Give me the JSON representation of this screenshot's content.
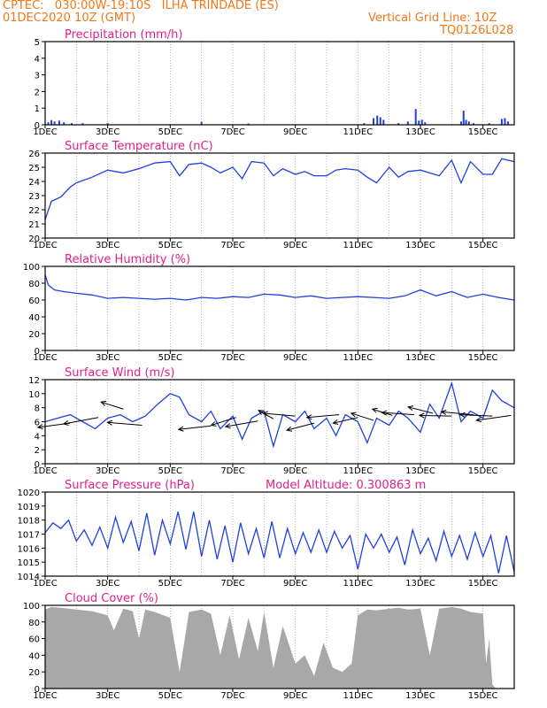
{
  "header": {
    "line1_left": "CPTEC:   030:00W-19:10S   ILHA TRINDADE (ES)",
    "line2_left": "01DEC2020 10Z (GMT)",
    "line1_right": "Vertical Grid Line: 10Z",
    "line2_right": "TQ0126L028"
  },
  "colors": {
    "header": "#f07818",
    "title": "#e0208a",
    "series": "#2040e0",
    "bar": "#2040e0",
    "cloud": "#a8a8a8",
    "grid": "#888888"
  },
  "xaxis": {
    "ticks": [
      "1DEC",
      "3DEC",
      "5DEC",
      "7DEC",
      "9DEC",
      "11DEC",
      "13DEC",
      "15DEC"
    ],
    "days": 15
  },
  "chart_data": [
    {
      "type": "bar",
      "title": "Precipitation (mm/h)",
      "ylim": [
        0,
        5
      ],
      "yticks": [
        "0",
        "1",
        "2",
        "3",
        "4",
        "5"
      ],
      "bars": [
        [
          0.1,
          0.15
        ],
        [
          0.2,
          0.28
        ],
        [
          0.3,
          0.2
        ],
        [
          0.45,
          0.25
        ],
        [
          0.6,
          0.15
        ],
        [
          0.85,
          0.1
        ],
        [
          1.2,
          0.1
        ],
        [
          2.0,
          0.1
        ],
        [
          5.0,
          0.18
        ],
        [
          6.5,
          0.08
        ],
        [
          10.2,
          0.1
        ],
        [
          10.5,
          0.4
        ],
        [
          10.62,
          0.55
        ],
        [
          10.72,
          0.45
        ],
        [
          10.82,
          0.3
        ],
        [
          11.3,
          0.1
        ],
        [
          11.6,
          0.2
        ],
        [
          11.85,
          0.95
        ],
        [
          11.95,
          0.25
        ],
        [
          12.05,
          0.3
        ],
        [
          12.15,
          0.15
        ],
        [
          13.3,
          0.2
        ],
        [
          13.38,
          0.85
        ],
        [
          13.46,
          0.3
        ],
        [
          13.55,
          0.2
        ],
        [
          13.7,
          0.1
        ],
        [
          14.2,
          0.1
        ],
        [
          14.6,
          0.35
        ],
        [
          14.7,
          0.4
        ],
        [
          14.8,
          0.2
        ]
      ]
    },
    {
      "type": "line",
      "title": "Surface Temperature (nC)",
      "ylim": [
        20,
        26
      ],
      "yticks": [
        "20",
        "21",
        "22",
        "23",
        "24",
        "25",
        "26"
      ],
      "x": [
        0,
        0.2,
        0.5,
        0.8,
        1.0,
        1.5,
        2.0,
        2.5,
        3.0,
        3.5,
        4.0,
        4.3,
        4.6,
        5.0,
        5.3,
        5.6,
        6.0,
        6.3,
        6.6,
        7.0,
        7.3,
        7.6,
        8.0,
        8.3,
        8.6,
        9.0,
        9.3,
        9.6,
        10.0,
        10.3,
        10.6,
        11.0,
        11.3,
        11.6,
        12.0,
        12.3,
        12.6,
        13.0,
        13.3,
        13.6,
        14.0,
        14.3,
        14.6,
        15.0
      ],
      "y": [
        21.3,
        22.6,
        22.9,
        23.6,
        23.9,
        24.3,
        24.8,
        24.6,
        24.9,
        25.3,
        25.4,
        24.4,
        25.2,
        25.3,
        25.0,
        24.6,
        25.0,
        24.2,
        25.4,
        25.3,
        24.4,
        24.9,
        24.5,
        24.7,
        24.4,
        24.4,
        24.8,
        24.9,
        24.8,
        24.3,
        23.9,
        25.0,
        24.3,
        24.7,
        24.8,
        24.6,
        24.4,
        25.5,
        23.9,
        25.4,
        24.5,
        24.5,
        25.6,
        25.4
      ]
    },
    {
      "type": "line",
      "title": "Relative Humidity (%)",
      "ylim": [
        0,
        100
      ],
      "yticks": [
        "0",
        "20",
        "40",
        "60",
        "80",
        "100"
      ],
      "x": [
        0,
        0.1,
        0.3,
        0.6,
        1.0,
        1.5,
        2.0,
        2.5,
        3.0,
        3.5,
        4.0,
        4.5,
        5.0,
        5.5,
        6.0,
        6.5,
        7.0,
        7.5,
        8.0,
        8.5,
        9.0,
        9.5,
        10.0,
        10.5,
        11.0,
        11.5,
        12.0,
        12.5,
        13.0,
        13.5,
        14.0,
        14.5,
        15.0
      ],
      "y": [
        90,
        78,
        72,
        70,
        68,
        66,
        62,
        63,
        62,
        61,
        62,
        60,
        63,
        62,
        64,
        63,
        67,
        66,
        63,
        65,
        62,
        63,
        64,
        63,
        62,
        65,
        72,
        65,
        70,
        63,
        67,
        63,
        60
      ]
    },
    {
      "type": "line",
      "title": "Surface Wind (m/s)",
      "ylim": [
        0,
        12
      ],
      "yticks": [
        "0",
        "2",
        "4",
        "6",
        "8",
        "10",
        "12"
      ],
      "x": [
        0,
        0.4,
        0.8,
        1.2,
        1.6,
        2.0,
        2.4,
        2.8,
        3.2,
        3.6,
        4.0,
        4.3,
        4.6,
        5.0,
        5.3,
        5.6,
        6.0,
        6.3,
        6.6,
        7.0,
        7.3,
        7.6,
        8.0,
        8.3,
        8.6,
        9.0,
        9.3,
        9.6,
        10.0,
        10.3,
        10.6,
        11.0,
        11.3,
        11.6,
        12.0,
        12.3,
        12.6,
        13.0,
        13.3,
        13.6,
        14.0,
        14.3,
        14.6,
        15.0
      ],
      "y": [
        6,
        6.5,
        7,
        6,
        5,
        6.5,
        7,
        6,
        6.8,
        8.5,
        10,
        9.5,
        7,
        6,
        7.5,
        5,
        6.8,
        3.5,
        6.5,
        7.5,
        2.5,
        7,
        6,
        7.5,
        5,
        6.5,
        4,
        7,
        6,
        3,
        6.5,
        5.5,
        7.5,
        6.5,
        4.5,
        8.5,
        6.5,
        11.5,
        6,
        7.5,
        6.5,
        10.5,
        9,
        8
      ],
      "arrows": [
        [
          0.8,
          5.8,
          -1.3,
          -0.6
        ],
        [
          1.7,
          6.6,
          -1.4,
          -0.9
        ],
        [
          2.5,
          7.8,
          -0.9,
          1.0
        ],
        [
          3.1,
          5.5,
          -1.4,
          0.4
        ],
        [
          5.3,
          5.4,
          -1.3,
          -0.5
        ],
        [
          6.1,
          6.6,
          -1.0,
          -1.1
        ],
        [
          6.8,
          6.1,
          -1.3,
          -0.8
        ],
        [
          7.3,
          6.4,
          -0.6,
          1.2
        ],
        [
          8.0,
          6.8,
          -1.3,
          0.4
        ],
        [
          8.6,
          5.8,
          -1.1,
          -1.0
        ],
        [
          9.4,
          7.0,
          -1.3,
          -0.4
        ],
        [
          10.0,
          6.6,
          -1.0,
          -0.8
        ],
        [
          10.5,
          6.2,
          -0.9,
          1.0
        ],
        [
          11.1,
          6.9,
          -0.8,
          0.9
        ],
        [
          11.8,
          7.0,
          -1.3,
          0.3
        ],
        [
          12.4,
          7.2,
          -1.0,
          0.9
        ],
        [
          13.0,
          6.8,
          -1.3,
          0.1
        ],
        [
          13.7,
          7.0,
          -1.3,
          0.4
        ],
        [
          14.3,
          6.8,
          -1.3,
          0.2
        ],
        [
          14.9,
          6.9,
          -1.4,
          -0.7
        ]
      ]
    },
    {
      "type": "line",
      "title": "Surface Pressure (hPa)",
      "subtitle": "Model Altitude: 0.300863 m",
      "ylim": [
        1014,
        1020
      ],
      "yticks": [
        "1014",
        "1015",
        "1016",
        "1017",
        "1018",
        "1019",
        "1020"
      ],
      "x": [
        0,
        0.25,
        0.5,
        0.75,
        1.0,
        1.25,
        1.5,
        1.75,
        2.0,
        2.25,
        2.5,
        2.75,
        3.0,
        3.25,
        3.5,
        3.75,
        4.0,
        4.25,
        4.5,
        4.75,
        5.0,
        5.25,
        5.5,
        5.75,
        6.0,
        6.25,
        6.5,
        6.75,
        7.0,
        7.25,
        7.5,
        7.75,
        8.0,
        8.25,
        8.5,
        8.75,
        9.0,
        9.25,
        9.5,
        9.75,
        10.0,
        10.25,
        10.5,
        10.75,
        11.0,
        11.25,
        11.5,
        11.75,
        12.0,
        12.25,
        12.5,
        12.75,
        13.0,
        13.25,
        13.5,
        13.75,
        14.0,
        14.25,
        14.5,
        14.75,
        15.0
      ],
      "y": [
        1017.1,
        1017.8,
        1017.4,
        1018.0,
        1016.5,
        1017.3,
        1016.2,
        1017.5,
        1016.0,
        1018.2,
        1016.4,
        1017.9,
        1015.8,
        1018.5,
        1015.5,
        1018.0,
        1016.3,
        1018.6,
        1015.9,
        1018.6,
        1015.4,
        1018.0,
        1015.2,
        1017.6,
        1015.0,
        1017.8,
        1015.6,
        1017.4,
        1015.3,
        1017.9,
        1015.3,
        1017.4,
        1015.6,
        1017.1,
        1015.7,
        1017.3,
        1015.7,
        1017.2,
        1016.0,
        1016.9,
        1014.5,
        1017.0,
        1016.0,
        1017.0,
        1015.7,
        1016.8,
        1014.8,
        1017.3,
        1015.6,
        1016.7,
        1015.1,
        1017.2,
        1015.4,
        1016.9,
        1015.2,
        1017.1,
        1015.4,
        1016.9,
        1014.2,
        1016.9,
        1014.3
      ]
    },
    {
      "type": "area",
      "title": "Cloud Cover (%)",
      "ylim": [
        0,
        100
      ],
      "yticks": [
        "0",
        "20",
        "40",
        "60",
        "80",
        "100"
      ],
      "x": [
        0,
        0.2,
        0.5,
        1.0,
        1.5,
        2.0,
        2.2,
        2.5,
        2.8,
        3.0,
        3.2,
        3.5,
        4.0,
        4.3,
        4.6,
        5.0,
        5.3,
        5.6,
        5.9,
        6.2,
        6.5,
        6.8,
        7.0,
        7.3,
        7.6,
        8.0,
        8.3,
        8.6,
        8.9,
        9.2,
        9.5,
        9.8,
        10.0,
        10.3,
        10.6,
        11.0,
        11.3,
        11.6,
        12.0,
        12.3,
        12.6,
        13.0,
        13.3,
        13.6,
        14.0,
        14.1,
        14.2,
        14.3,
        14.4,
        14.6,
        14.8,
        15.0
      ],
      "y": [
        95,
        98,
        97,
        95,
        93,
        88,
        70,
        96,
        93,
        60,
        95,
        92,
        85,
        20,
        92,
        95,
        90,
        40,
        88,
        35,
        85,
        45,
        92,
        25,
        75,
        30,
        40,
        15,
        55,
        25,
        20,
        30,
        88,
        95,
        94,
        96,
        97,
        95,
        96,
        40,
        96,
        98,
        96,
        92,
        90,
        30,
        60,
        5,
        0,
        0,
        0,
        0
      ]
    }
  ]
}
